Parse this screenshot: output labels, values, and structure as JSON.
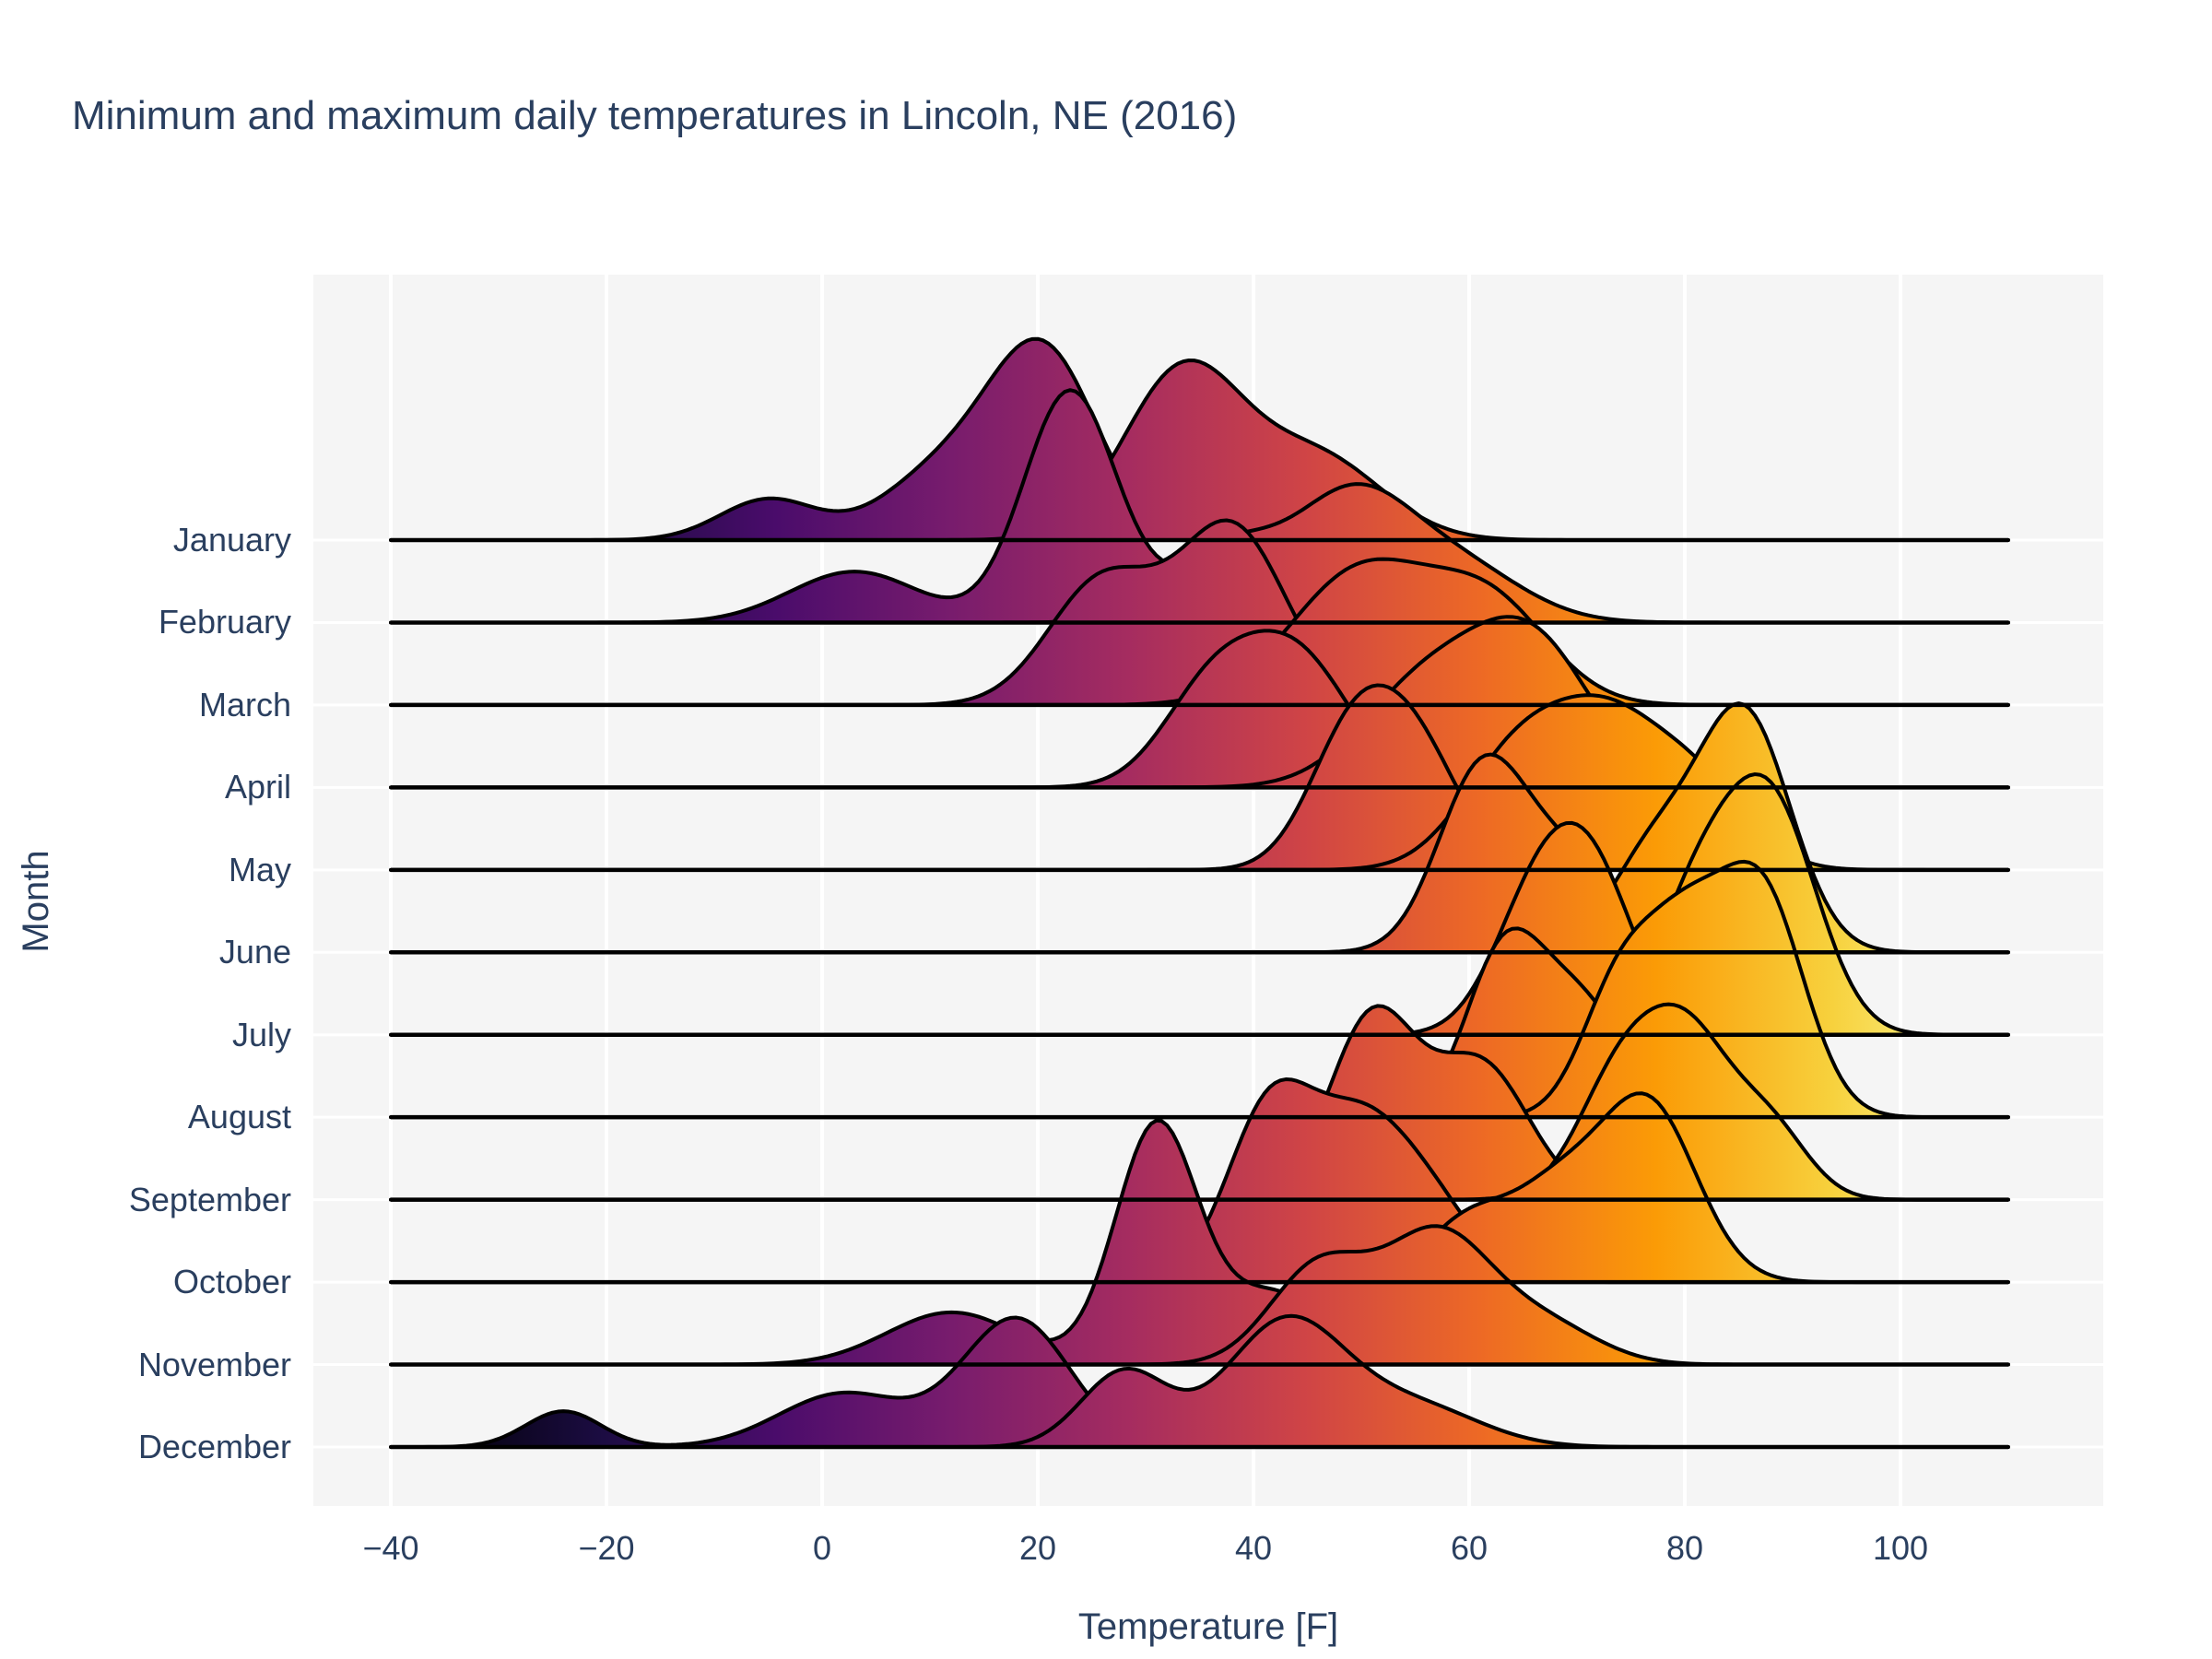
{
  "chart_data": {
    "type": "ridgeline",
    "title": "Minimum and maximum daily temperatures in Lincoln, NE (2016)",
    "xlabel": "Temperature [F]",
    "ylabel": "Month",
    "categories": [
      "January",
      "February",
      "March",
      "April",
      "May",
      "June",
      "July",
      "August",
      "September",
      "October",
      "November",
      "December"
    ],
    "series_per_row": [
      "min_temp_density",
      "max_temp_density"
    ],
    "x_ticks_f": [
      -40,
      -20,
      0,
      20,
      40,
      60,
      80,
      100
    ],
    "x_tick_labels": [
      "−40",
      "−20",
      "0",
      "20",
      "40",
      "60",
      "80",
      "100"
    ],
    "x_data_range_f": [
      -40,
      110
    ],
    "x_axis_range_f": [
      -47.2,
      118.8
    ],
    "grid": true,
    "legend": "none",
    "row_overlap_note": "each row has two KDE curves (daily min and max temps); peak heights given in row-spacing units",
    "colorscale": {
      "name": "Inferno",
      "domain_f": [
        -37,
        110
      ],
      "colors": [
        "#000004",
        "#1b0c41",
        "#4a0c6b",
        "#781c6d",
        "#a52c60",
        "#cf4446",
        "#ed6925",
        "#fb9b06",
        "#f7d13d",
        "#fcffa4"
      ]
    },
    "style": {
      "background": "#ffffff",
      "plot_background": "#f5f5f5",
      "gridline_color": "#ffffff",
      "text_color": "#2a3f5f",
      "outline_color": "#000000"
    },
    "rows": [
      {
        "month": "January",
        "min": {
          "height_rel": 2.44,
          "peak_f": 20.5,
          "components": [
            [
              -5,
              4.5,
              0.22
            ],
            [
              11,
              5.5,
              0.35
            ],
            [
              20.5,
              5,
              1.0
            ]
          ]
        },
        "max": {
          "height_rel": 2.18,
          "peak_f": 33.5,
          "components": [
            [
              33.5,
              5.5,
              1.0
            ],
            [
              46,
              6,
              0.48
            ]
          ]
        }
      },
      {
        "month": "February",
        "min": {
          "height_rel": 2.82,
          "peak_f": 23,
          "components": [
            [
              3,
              6,
              0.22
            ],
            [
              23,
              4.3,
              1.0
            ],
            [
              38,
              5,
              0.3
            ]
          ]
        },
        "max": {
          "height_rel": 1.68,
          "peak_f": 49,
          "components": [
            [
              37,
              5,
              0.6
            ],
            [
              49,
              5.5,
              1.0
            ],
            [
              59,
              6,
              0.45
            ]
          ]
        }
      },
      {
        "month": "March",
        "min": {
          "height_rel": 2.24,
          "peak_f": 38,
          "components": [
            [
              26,
              5,
              0.7
            ],
            [
              38,
              5,
              1.0
            ]
          ]
        },
        "max": {
          "height_rel": 1.77,
          "peak_f": 50,
          "components": [
            [
              50,
              6.5,
              1.0
            ],
            [
              62,
              5.5,
              0.72
            ]
          ]
        }
      },
      {
        "month": "April",
        "min": {
          "height_rel": 1.9,
          "peak_f": 44,
          "components": [
            [
              36,
              4.5,
              0.72
            ],
            [
              44,
              5,
              1.0
            ]
          ]
        },
        "max": {
          "height_rel": 2.07,
          "peak_f": 66,
          "components": [
            [
              56,
              6,
              0.75
            ],
            [
              66,
              5.5,
              1.0
            ]
          ]
        }
      },
      {
        "month": "May",
        "min": {
          "height_rel": 2.24,
          "peak_f": 49,
          "components": [
            [
              49,
              4,
              1.0
            ],
            [
              55,
              4.2,
              0.95
            ]
          ]
        },
        "max": {
          "height_rel": 2.12,
          "peak_f": 73,
          "components": [
            [
              64,
              5,
              0.7
            ],
            [
              73,
              5.5,
              1.0
            ],
            [
              82,
              4.5,
              0.45
            ]
          ]
        }
      },
      {
        "month": "June",
        "min": {
          "height_rel": 2.4,
          "peak_f": 61,
          "components": [
            [
              61,
              4,
              1.0
            ],
            [
              69,
              5,
              0.55
            ]
          ]
        },
        "max": {
          "height_rel": 3.02,
          "peak_f": 85.5,
          "components": [
            [
              77,
              4,
              0.4
            ],
            [
              85.5,
              4.3,
              1.0
            ]
          ]
        }
      },
      {
        "month": "July",
        "min": {
          "height_rel": 2.57,
          "peak_f": 71.5,
          "components": [
            [
              66,
              4,
              0.8
            ],
            [
              71.5,
              4,
              1.0
            ]
          ]
        },
        "max": {
          "height_rel": 3.16,
          "peak_f": 88,
          "components": [
            [
              81,
              4,
              0.55
            ],
            [
              88,
              4.3,
              1.0
            ]
          ]
        }
      },
      {
        "month": "August",
        "min": {
          "height_rel": 2.29,
          "peak_f": 63,
          "components": [
            [
              63,
              3.5,
              1.0
            ],
            [
              70,
              4.5,
              0.8
            ]
          ]
        },
        "max": {
          "height_rel": 3.1,
          "peak_f": 87,
          "components": [
            [
              74,
              3.5,
              0.58
            ],
            [
              80,
              3.5,
              0.66
            ],
            [
              87,
              4,
              1.0
            ]
          ]
        }
      },
      {
        "month": "September",
        "min": {
          "height_rel": 2.35,
          "peak_f": 51,
          "components": [
            [
              51,
              4,
              1.0
            ],
            [
              61,
              4.5,
              0.75
            ]
          ]
        },
        "max": {
          "height_rel": 2.37,
          "peak_f": 80.5,
          "components": [
            [
              74,
              4,
              0.8
            ],
            [
              80.5,
              4,
              1.0
            ],
            [
              88,
              3.5,
              0.45
            ]
          ]
        }
      },
      {
        "month": "October",
        "min": {
          "height_rel": 2.46,
          "peak_f": 41.5,
          "components": [
            [
              41.5,
              4,
              1.0
            ],
            [
              50,
              4.5,
              0.88
            ],
            [
              57,
              4,
              0.35
            ]
          ]
        },
        "max": {
          "height_rel": 2.29,
          "peak_f": 76.5,
          "components": [
            [
              60,
              4,
              0.35
            ],
            [
              68,
              4,
              0.45
            ],
            [
              76.5,
              4.5,
              1.0
            ]
          ]
        }
      },
      {
        "month": "November",
        "min": {
          "height_rel": 2.96,
          "peak_f": 31,
          "components": [
            [
              12,
              6,
              0.22
            ],
            [
              31,
              3.8,
              1.0
            ],
            [
              42,
              5,
              0.3
            ]
          ]
        },
        "max": {
          "height_rel": 1.68,
          "peak_f": 57,
          "components": [
            [
              46,
              4.5,
              0.75
            ],
            [
              57,
              5,
              1.0
            ],
            [
              67,
              5,
              0.3
            ]
          ]
        }
      },
      {
        "month": "December",
        "min": {
          "height_rel": 1.57,
          "peak_f": 18,
          "components": [
            [
              -24,
              3.5,
              0.28
            ],
            [
              2,
              6,
              0.42
            ],
            [
              18,
              5,
              1.0
            ]
          ]
        },
        "max": {
          "height_rel": 1.59,
          "peak_f": 43,
          "components": [
            [
              28,
              4,
              0.6
            ],
            [
              43,
              5.5,
              1.0
            ],
            [
              55,
              6,
              0.32
            ]
          ]
        }
      }
    ]
  }
}
